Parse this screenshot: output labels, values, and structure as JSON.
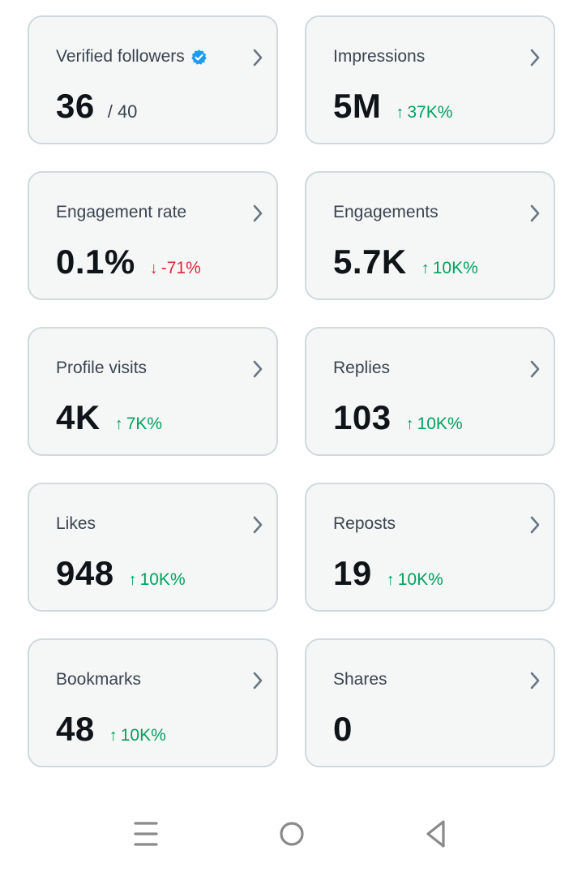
{
  "cards": [
    {
      "title": "Verified followers",
      "value": "36",
      "total": "/ 40",
      "change": "",
      "direction": "none",
      "verified": true
    },
    {
      "title": "Impressions",
      "value": "5M",
      "total": "",
      "change": "37K%",
      "direction": "up",
      "verified": false
    },
    {
      "title": "Engagement rate",
      "value": "0.1%",
      "total": "",
      "change": "-71%",
      "direction": "down",
      "verified": false
    },
    {
      "title": "Engagements",
      "value": "5.7K",
      "total": "",
      "change": "10K%",
      "direction": "up",
      "verified": false
    },
    {
      "title": "Profile visits",
      "value": "4K",
      "total": "",
      "change": "7K%",
      "direction": "up",
      "verified": false
    },
    {
      "title": "Replies",
      "value": "103",
      "total": "",
      "change": "10K%",
      "direction": "up",
      "verified": false
    },
    {
      "title": "Likes",
      "value": "948",
      "total": "",
      "change": "10K%",
      "direction": "up",
      "verified": false
    },
    {
      "title": "Reposts",
      "value": "19",
      "total": "",
      "change": "10K%",
      "direction": "up",
      "verified": false
    },
    {
      "title": "Bookmarks",
      "value": "48",
      "total": "",
      "change": "10K%",
      "direction": "up",
      "verified": false
    },
    {
      "title": "Shares",
      "value": "0",
      "total": "",
      "change": "",
      "direction": "none",
      "verified": false
    }
  ],
  "arrows": {
    "up": "↑",
    "down": "↓"
  },
  "colors": {
    "up": "#00a15f",
    "down": "#e0263c",
    "card_bg": "#f5f7f6",
    "card_border": "#cfd9de",
    "verified": "#1d9bf0",
    "chevron": "#687684",
    "nav_icon": "#8a8a8a"
  },
  "icons": {
    "verified": "verified-badge-icon",
    "chevron": "chevron-right-icon",
    "nav": [
      "menu-icon",
      "home-circle-icon",
      "back-triangle-icon"
    ]
  }
}
